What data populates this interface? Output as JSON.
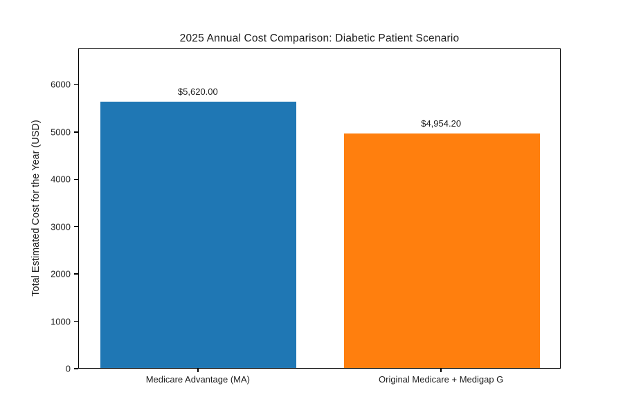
{
  "chart_data": {
    "type": "bar",
    "title": "2025 Annual Cost Comparison: Diabetic Patient Scenario",
    "xlabel": "",
    "ylabel": "Total Estimated Cost for the Year (USD)",
    "categories": [
      "Medicare Advantage (MA)",
      "Original Medicare + Medigap G"
    ],
    "values": [
      5620.0,
      4954.2
    ],
    "value_labels": [
      "$5,620.00",
      "$4,954.20"
    ],
    "bar_colors": [
      "#1f77b4",
      "#ff7f0e"
    ],
    "yticks": [
      0,
      1000,
      2000,
      3000,
      4000,
      5000,
      6000
    ],
    "ylim": [
      0,
      6767
    ],
    "grid": false,
    "legend": null,
    "text_color": "#1c1c1c",
    "spine_color": "#000000"
  }
}
